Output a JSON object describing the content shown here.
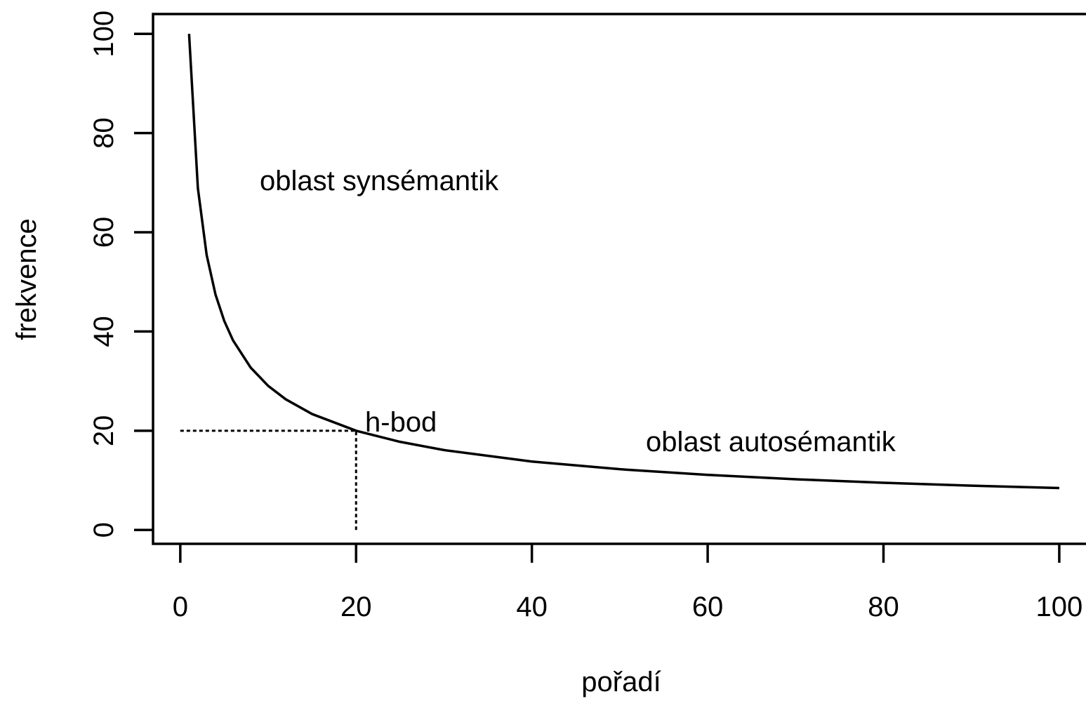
{
  "chart_data": {
    "type": "line",
    "xlabel": "pořadí",
    "ylabel": "frekvence",
    "x": [
      1,
      2,
      3,
      4,
      5,
      6,
      8,
      10,
      12,
      15,
      20,
      25,
      30,
      40,
      50,
      60,
      70,
      80,
      90,
      100
    ],
    "series": [
      {
        "color": "#000000",
        "values": [
          100,
          68.92,
          55.43,
          47.5,
          42.14,
          38.21,
          32.74,
          29.04,
          26.33,
          23.36,
          20,
          17.76,
          16.1,
          13.79,
          12.24,
          11.1,
          10.21,
          9.51,
          8.92,
          8.44
        ]
      }
    ],
    "guides": [
      {
        "x": [
          0,
          20
        ],
        "y": [
          20,
          20
        ]
      },
      {
        "x": [
          20,
          20
        ],
        "y": [
          0,
          20
        ]
      }
    ],
    "annotations": [
      "oblast synsémantik",
      "h-bod",
      "oblast autosémantik"
    ],
    "xlim": [
      -3.1,
      104
    ],
    "ylim": [
      -2.8,
      104
    ],
    "xticks": [
      0,
      20,
      40,
      60,
      80,
      100
    ],
    "yticks": [
      0,
      20,
      40,
      60,
      80,
      100
    ]
  }
}
